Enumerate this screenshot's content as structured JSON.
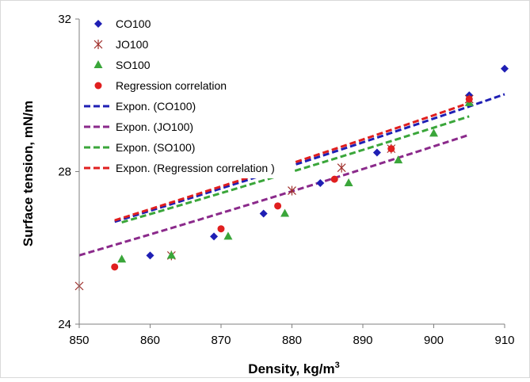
{
  "chart_data": {
    "type": "scatter",
    "xlabel": "Density, kg/m",
    "xlabel_superscript": "3",
    "ylabel": "Surface tension, mN/m",
    "xlim": [
      850,
      910
    ],
    "ylim": [
      24,
      32
    ],
    "xticks": [
      850,
      860,
      870,
      880,
      890,
      900,
      910
    ],
    "yticks": [
      24,
      28,
      32
    ],
    "xtick_labels": [
      "850",
      "860",
      "870",
      "880",
      "890",
      "900",
      "910"
    ],
    "ytick_labels": [
      "24",
      "28",
      "32"
    ],
    "grid": false,
    "legend_position": "top-left",
    "series": [
      {
        "name": "CO100",
        "marker": "diamond",
        "color": "#1f1fb4",
        "x": [
          860,
          869,
          876,
          884,
          892,
          905,
          910
        ],
        "y": [
          25.8,
          26.3,
          26.9,
          27.7,
          28.5,
          30.0,
          30.7
        ]
      },
      {
        "name": "JO100",
        "marker": "asterisk",
        "color": "#a0302c",
        "x": [
          850,
          863,
          880,
          887,
          894,
          905
        ],
        "y": [
          25.0,
          25.8,
          27.5,
          28.1,
          28.6,
          29.9
        ]
      },
      {
        "name": "SO100",
        "marker": "triangle",
        "color": "#3aa63a",
        "x": [
          856,
          863,
          871,
          879,
          888,
          895,
          900,
          905
        ],
        "y": [
          25.7,
          25.8,
          26.3,
          26.9,
          27.7,
          28.3,
          29.0,
          29.8
        ]
      },
      {
        "name": "Regression correlation",
        "marker": "circle",
        "color": "#e01f1f",
        "x": [
          855,
          870,
          878,
          886,
          894,
          905
        ],
        "y": [
          25.5,
          26.5,
          27.1,
          27.8,
          28.6,
          29.9
        ]
      }
    ],
    "trendlines": [
      {
        "name": "Expon. (CO100)",
        "color": "#1f1fb4",
        "style": "dashed",
        "x_range": [
          855,
          910
        ],
        "a": 4.26,
        "b": 0.002146
      },
      {
        "name": "Expon. (JO100)",
        "color": "#8b2a8b",
        "style": "dashed",
        "x_range": [
          850,
          905
        ],
        "a": 4.33,
        "b": 0.0021
      },
      {
        "name": "Expon. (SO100)",
        "color": "#3aa63a",
        "style": "dashed",
        "x_range": [
          856,
          905
        ],
        "a": 4.72,
        "b": 0.002023
      },
      {
        "name": "Expon. (Regression correlation )",
        "color": "#e01f1f",
        "style": "dashed",
        "x_range": [
          855,
          905
        ],
        "a": 4.14,
        "b": 0.002181
      }
    ]
  }
}
